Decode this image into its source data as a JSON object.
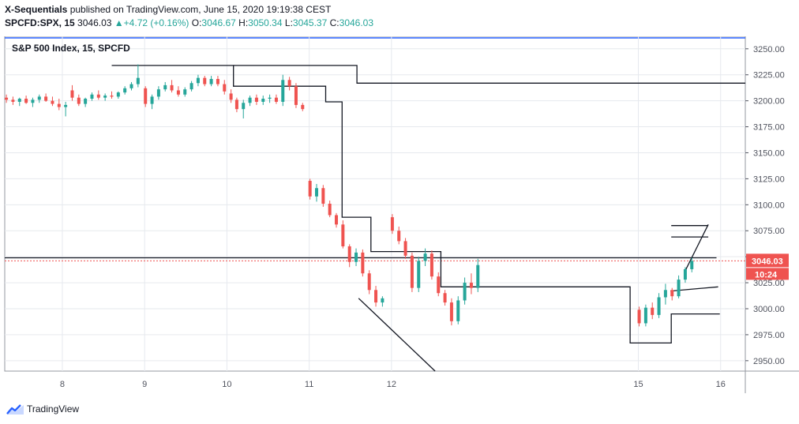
{
  "header": {
    "author": "X-Sequentials",
    "published": "published on TradingView.com, June 15, 2020 19:19:38 CEST",
    "symbol": "SPCFD:SPX, 15",
    "last": "3046.03",
    "change": "+4.72 (+0.16%)",
    "o_label": "O:",
    "o_value": "3046.67",
    "h_label": "H:",
    "h_value": "3050.34",
    "l_label": "L:",
    "l_value": "3045.37",
    "c_label": "C:",
    "c_value": "3046.03"
  },
  "footer": {
    "brand": "TradingView",
    "brand_icon": "tradingview-logo-icon"
  },
  "colors": {
    "up": "#26a69a",
    "down": "#ef5350",
    "grid": "#e6e9ee",
    "axis": "#50535e",
    "accent": "#2962ff",
    "price_tag": "#ef5350"
  },
  "chart_data": {
    "type": "candlestick",
    "title": "S&P 500 Index, 15, SPCFD",
    "x_ticks": [
      {
        "x": 8,
        "label": "8"
      },
      {
        "x": 9,
        "label": "9"
      },
      {
        "x": 10,
        "label": "10"
      },
      {
        "x": 11,
        "label": "11"
      },
      {
        "x": 12,
        "label": "12"
      },
      {
        "x": 15,
        "label": "15"
      },
      {
        "x": 16,
        "label": "16"
      }
    ],
    "x_range": [
      7.3,
      16.3
    ],
    "ylim": [
      2940,
      3262
    ],
    "y_ticks": [
      2950,
      2975,
      3000,
      3025,
      3050,
      3075,
      3100,
      3125,
      3150,
      3175,
      3200,
      3225,
      3250
    ],
    "last_price_label": "3046.03",
    "countdown_label": "10:24",
    "candles": [
      [
        7.32,
        3203,
        3206,
        3198,
        3201
      ],
      [
        7.4,
        3201,
        3204,
        3196,
        3199
      ],
      [
        7.48,
        3199,
        3203,
        3195,
        3202
      ],
      [
        7.56,
        3202,
        3205,
        3197,
        3198
      ],
      [
        7.64,
        3198,
        3203,
        3194,
        3201
      ],
      [
        7.72,
        3201,
        3206,
        3198,
        3204
      ],
      [
        7.8,
        3204,
        3207,
        3199,
        3200
      ],
      [
        7.88,
        3200,
        3204,
        3195,
        3197
      ],
      [
        7.96,
        3197,
        3202,
        3191,
        3194
      ],
      [
        8.04,
        3194,
        3199,
        3185,
        3196
      ],
      [
        8.12,
        3210,
        3215,
        3200,
        3203
      ],
      [
        8.2,
        3203,
        3206,
        3195,
        3197
      ],
      [
        8.28,
        3197,
        3203,
        3194,
        3202
      ],
      [
        8.36,
        3202,
        3208,
        3200,
        3206
      ],
      [
        8.44,
        3206,
        3210,
        3201,
        3203
      ],
      [
        8.52,
        3203,
        3207,
        3200,
        3205
      ],
      [
        8.6,
        3205,
        3209,
        3202,
        3204
      ],
      [
        8.68,
        3204,
        3209,
        3202,
        3208
      ],
      [
        8.76,
        3208,
        3214,
        3206,
        3212
      ],
      [
        8.84,
        3212,
        3218,
        3210,
        3216
      ],
      [
        8.92,
        3216,
        3235,
        3213,
        3222
      ],
      [
        9.01,
        3212,
        3214,
        3194,
        3197
      ],
      [
        9.09,
        3197,
        3206,
        3192,
        3204
      ],
      [
        9.17,
        3204,
        3214,
        3201,
        3211
      ],
      [
        9.25,
        3211,
        3218,
        3209,
        3215
      ],
      [
        9.33,
        3215,
        3220,
        3208,
        3210
      ],
      [
        9.41,
        3210,
        3214,
        3204,
        3206
      ],
      [
        9.49,
        3206,
        3213,
        3204,
        3211
      ],
      [
        9.57,
        3211,
        3219,
        3209,
        3217
      ],
      [
        9.65,
        3217,
        3225,
        3214,
        3222
      ],
      [
        9.73,
        3222,
        3224,
        3214,
        3216
      ],
      [
        9.81,
        3216,
        3224,
        3214,
        3221
      ],
      [
        9.89,
        3221,
        3224,
        3214,
        3216
      ],
      [
        9.97,
        3216,
        3220,
        3206,
        3209
      ],
      [
        10.05,
        3207,
        3211,
        3198,
        3201
      ],
      [
        10.12,
        3201,
        3203,
        3189,
        3192
      ],
      [
        10.2,
        3192,
        3201,
        3183,
        3198
      ],
      [
        10.28,
        3198,
        3205,
        3195,
        3203
      ],
      [
        10.36,
        3203,
        3206,
        3196,
        3199
      ],
      [
        10.44,
        3199,
        3205,
        3196,
        3202
      ],
      [
        10.52,
        3202,
        3206,
        3198,
        3203
      ],
      [
        10.6,
        3203,
        3206,
        3197,
        3199
      ],
      [
        10.68,
        3199,
        3225,
        3195,
        3220
      ],
      [
        10.76,
        3220,
        3223,
        3210,
        3214
      ],
      [
        10.84,
        3214,
        3217,
        3193,
        3196
      ],
      [
        10.92,
        3196,
        3198,
        3190,
        3192
      ],
      [
        11.01,
        3123,
        3125,
        3105,
        3108
      ],
      [
        11.09,
        3108,
        3120,
        3103,
        3116
      ],
      [
        11.17,
        3116,
        3119,
        3098,
        3101
      ],
      [
        11.25,
        3101,
        3104,
        3088,
        3090
      ],
      [
        11.33,
        3090,
        3092,
        3078,
        3081
      ],
      [
        11.41,
        3081,
        3085,
        3058,
        3060
      ],
      [
        11.49,
        3060,
        3062,
        3040,
        3045
      ],
      [
        11.57,
        3045,
        3058,
        3041,
        3054
      ],
      [
        11.65,
        3054,
        3057,
        3031,
        3034
      ],
      [
        11.73,
        3034,
        3037,
        3014,
        3018
      ],
      [
        11.81,
        3018,
        3022,
        3002,
        3006
      ],
      [
        11.89,
        3006,
        3012,
        3002,
        3010
      ],
      [
        12.01,
        3088,
        3091,
        3072,
        3075
      ],
      [
        12.09,
        3075,
        3079,
        3062,
        3065
      ],
      [
        12.17,
        3065,
        3068,
        3048,
        3051
      ],
      [
        12.25,
        3051,
        3054,
        3016,
        3020
      ],
      [
        12.33,
        3020,
        3050,
        3016,
        3046
      ],
      [
        12.41,
        3046,
        3058,
        3041,
        3053
      ],
      [
        12.49,
        3053,
        3056,
        3028,
        3031
      ],
      [
        12.57,
        3031,
        3035,
        3012,
        3015
      ],
      [
        12.65,
        3015,
        3018,
        3003,
        3006
      ],
      [
        12.73,
        3006,
        3010,
        2984,
        2988
      ],
      [
        12.81,
        2988,
        3012,
        2985,
        3008
      ],
      [
        12.89,
        3008,
        3030,
        3004,
        3025
      ],
      [
        12.97,
        3025,
        3034,
        3014,
        3020
      ],
      [
        13.05,
        3020,
        3048,
        3016,
        3042
      ],
      [
        15.01,
        2999,
        3002,
        2983,
        2986
      ],
      [
        15.09,
        2986,
        3004,
        2983,
        3001
      ],
      [
        15.17,
        3001,
        3006,
        2990,
        2994
      ],
      [
        15.25,
        2994,
        3015,
        2991,
        3011
      ],
      [
        15.33,
        3011,
        3024,
        3004,
        3018
      ],
      [
        15.41,
        3018,
        3020,
        3008,
        3012
      ],
      [
        15.49,
        3012,
        3032,
        3010,
        3028
      ],
      [
        15.57,
        3028,
        3040,
        3025,
        3038
      ],
      [
        15.65,
        3038,
        3049,
        3035,
        3046
      ]
    ],
    "annotation_lines": [
      {
        "type": "step",
        "points": [
          [
            8.6,
            3234
          ],
          [
            10.08,
            3234
          ],
          [
            10.08,
            3214
          ],
          [
            11.2,
            3214
          ],
          [
            11.2,
            3199
          ],
          [
            11.4,
            3199
          ],
          [
            11.4,
            3088
          ],
          [
            11.75,
            3088
          ],
          [
            11.75,
            3055
          ],
          [
            12.6,
            3055
          ],
          [
            12.6,
            3021
          ],
          [
            14.0,
            3021
          ],
          [
            14.0,
            3021
          ],
          [
            14.9,
            3021
          ],
          [
            14.9,
            2967
          ],
          [
            15.4,
            2967
          ],
          [
            15.4,
            2995
          ],
          [
            15.99,
            2995
          ]
        ]
      },
      {
        "type": "step",
        "points": [
          [
            10.08,
            3234
          ],
          [
            11.58,
            3234
          ],
          [
            11.58,
            3217
          ],
          [
            16.3,
            3217
          ]
        ]
      },
      {
        "type": "line",
        "points": [
          [
            7.3,
            3049
          ],
          [
            15.95,
            3049
          ]
        ]
      },
      {
        "type": "line",
        "points": [
          [
            11.6,
            3010
          ],
          [
            12.53,
            2940
          ]
        ]
      },
      {
        "type": "line",
        "points": [
          [
            15.39,
            3017
          ],
          [
            15.97,
            3021
          ]
        ]
      },
      {
        "type": "line",
        "points": [
          [
            15.4,
            3069
          ],
          [
            15.85,
            3069
          ]
        ]
      },
      {
        "type": "line",
        "points": [
          [
            15.4,
            3080
          ],
          [
            15.85,
            3080
          ]
        ]
      },
      {
        "type": "line",
        "points": [
          [
            15.56,
            3035
          ],
          [
            15.85,
            3081
          ]
        ]
      }
    ]
  }
}
